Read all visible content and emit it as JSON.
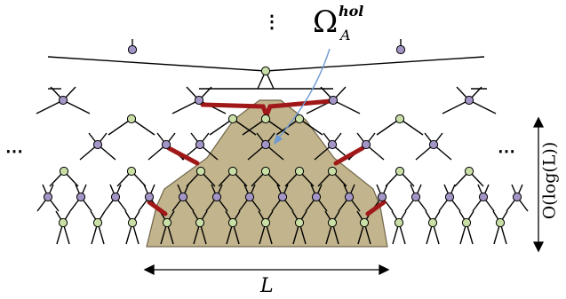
{
  "labels": {
    "omega": "Ω",
    "omega_sup": "hol",
    "omega_sub": "A",
    "width_label": "L",
    "height_label": "O(log(L))",
    "vertical_dots": "⋮",
    "left_dots": "⋯",
    "right_dots": "⋯"
  },
  "colors": {
    "region_fill": "#c2b48c",
    "region_stroke": "#6f654a",
    "cut_bond": "#a01818",
    "arrow": "#6e9bd2",
    "purple_node": "#a395c6",
    "green_node": "#c9dfa6",
    "line": "#000000"
  }
}
